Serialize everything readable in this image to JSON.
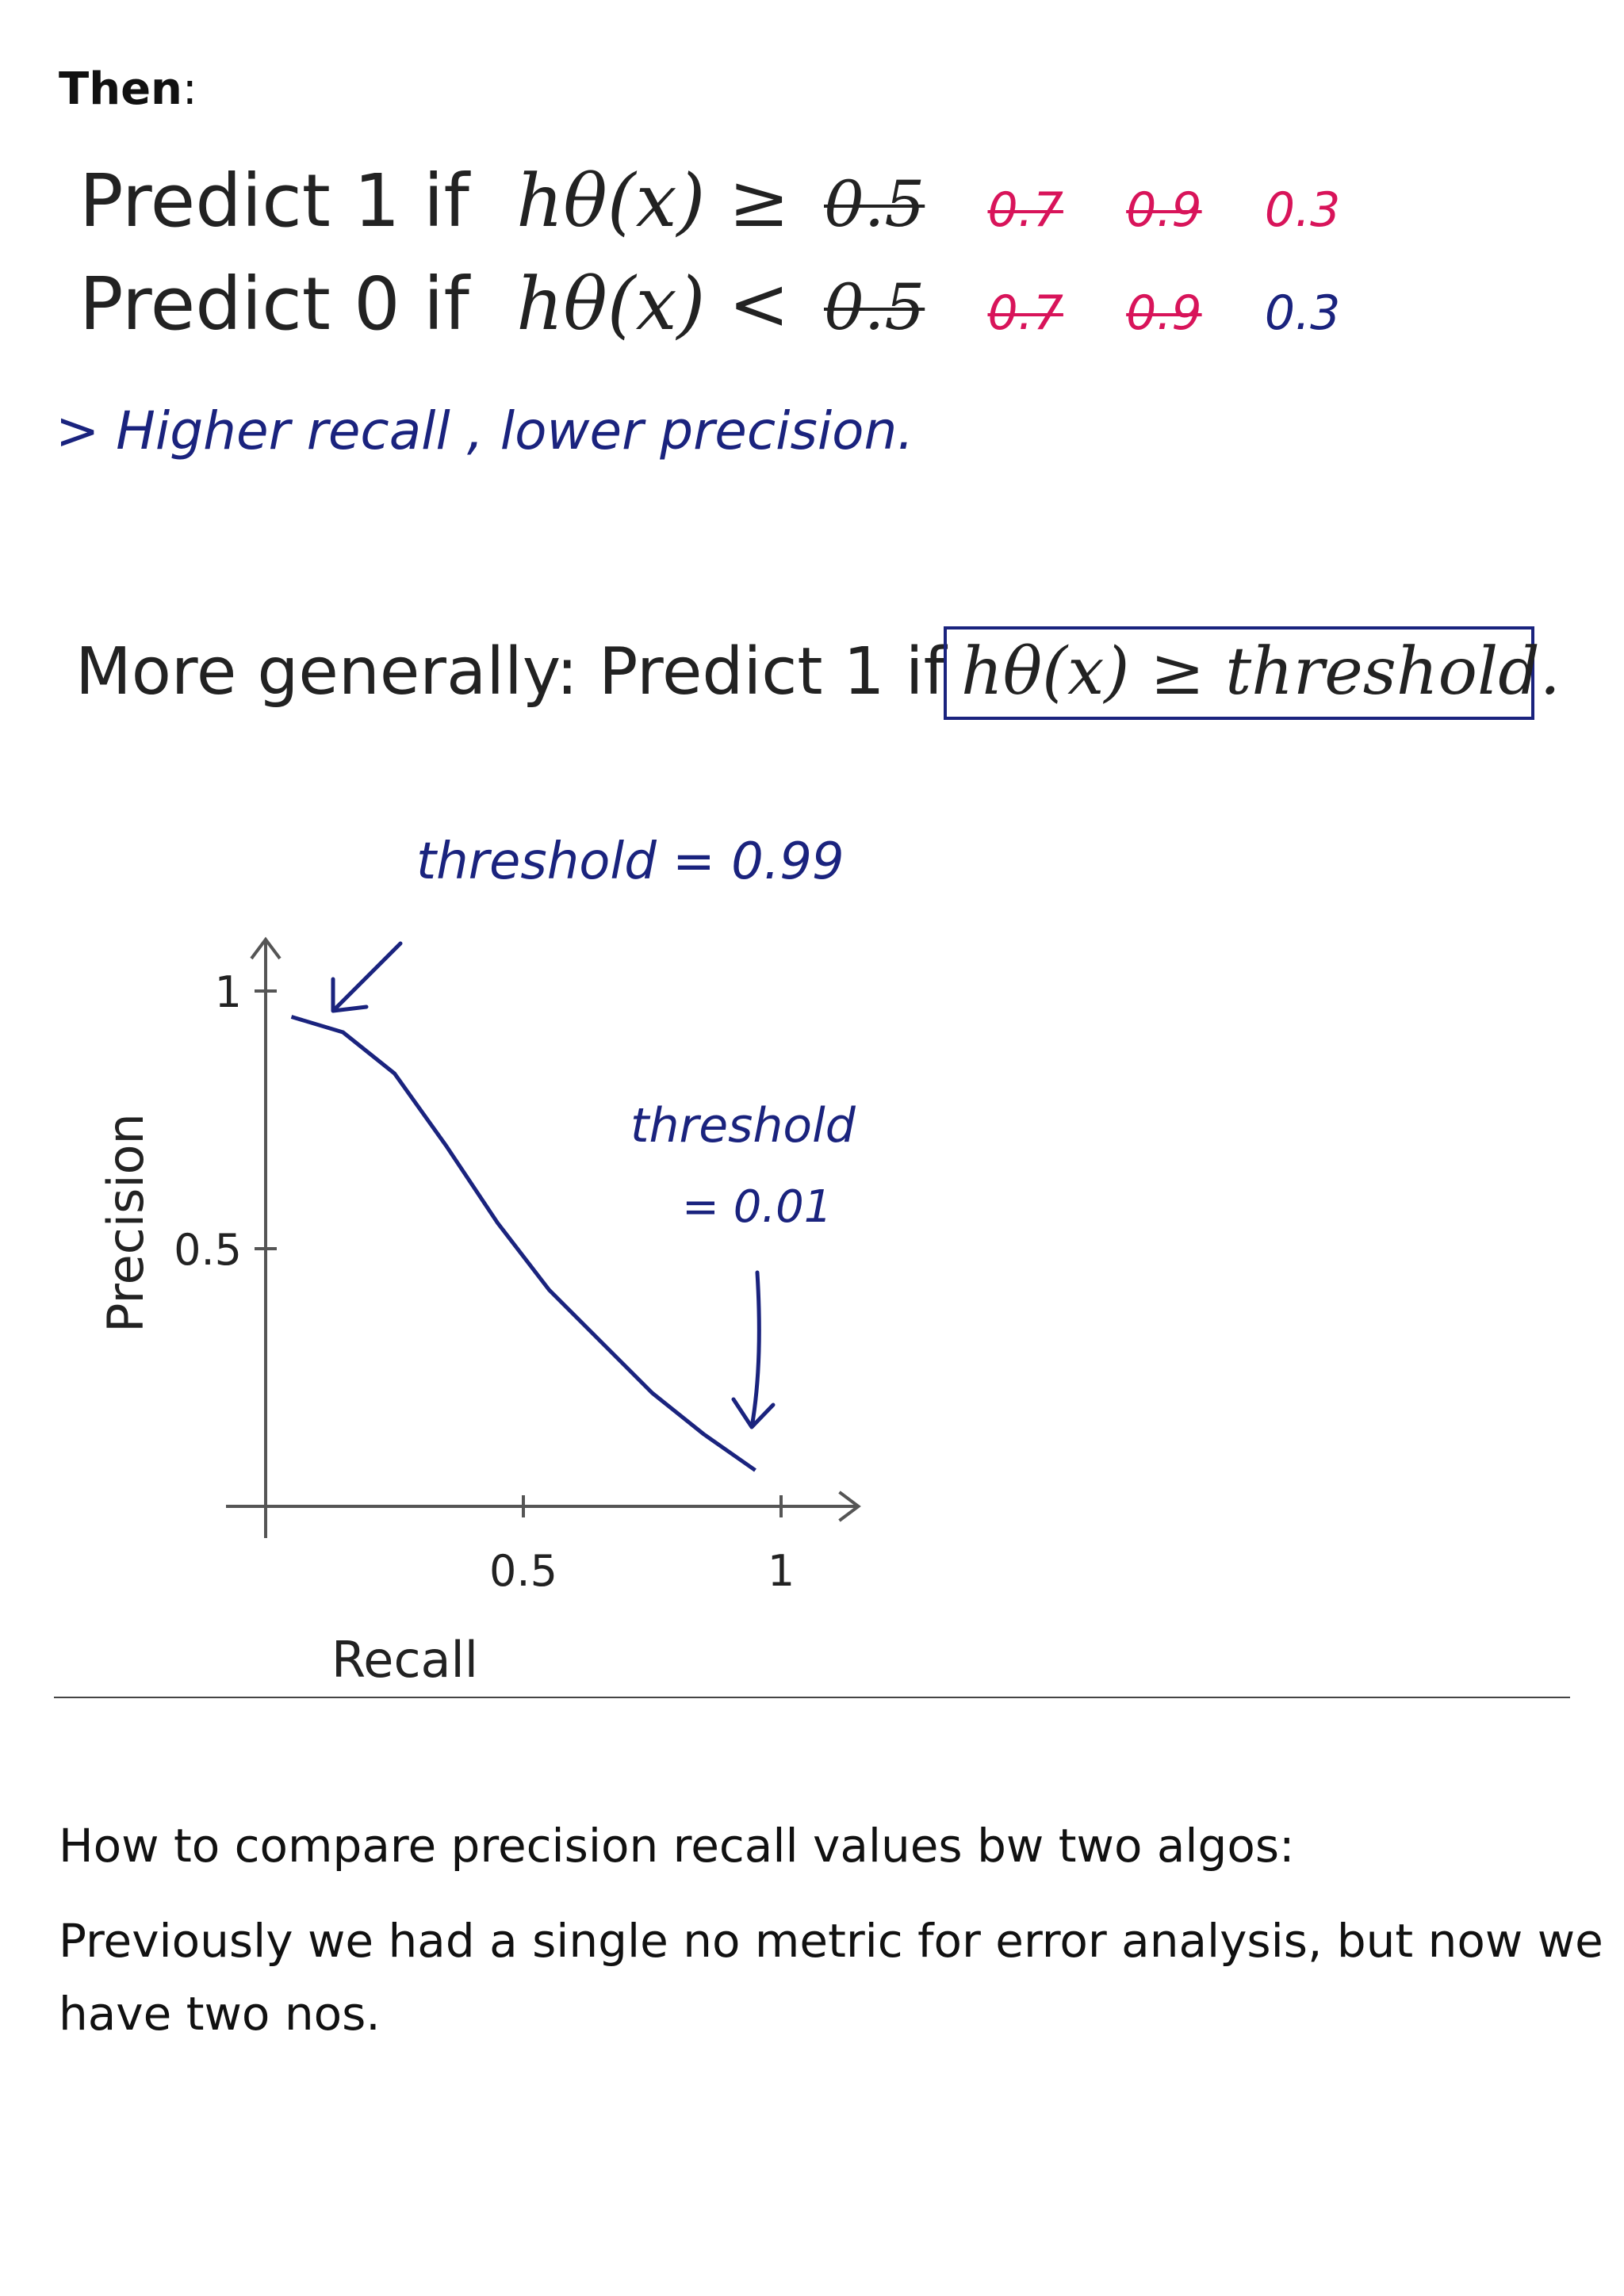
{
  "heading": {
    "label": "Then",
    "colon": ":"
  },
  "predict1": {
    "text": "Predict 1 if",
    "expr": "hθ(x) ≥",
    "orig": "0.5",
    "alts": [
      "0.7",
      "0.9",
      "0.3"
    ]
  },
  "predict0": {
    "text": "Predict 0 if",
    "expr": "hθ(x) <",
    "orig": "0.5",
    "alts": [
      "0.7",
      "0.9",
      "0.3"
    ]
  },
  "note": "> Higher recall , lower precision.",
  "general": {
    "prefix": "More generally: Predict 1 if",
    "boxed": "hθ(x) ≥ threshold."
  },
  "chart": {
    "annot_high_line1": "threshold = 0.99",
    "annot_low_line1": "threshold",
    "annot_low_line2": "= 0.01",
    "ylabel": "Precision",
    "xlabel": "Recall",
    "yticks": [
      "1",
      "0.5"
    ],
    "xticks": [
      "0.5",
      "1"
    ],
    "curve_color": "#1a237e"
  },
  "chart_data": {
    "type": "line",
    "title": "",
    "xlabel": "Recall",
    "ylabel": "Precision",
    "xlim": [
      0,
      1.1
    ],
    "ylim": [
      0,
      1.1
    ],
    "x_ticks": [
      0.5,
      1
    ],
    "y_ticks": [
      0.5,
      1
    ],
    "series": [
      {
        "x": [
          0.05,
          0.15,
          0.25,
          0.35,
          0.45,
          0.55,
          0.65,
          0.75,
          0.85,
          0.95
        ],
        "values": [
          0.95,
          0.92,
          0.84,
          0.7,
          0.55,
          0.42,
          0.32,
          0.22,
          0.14,
          0.07
        ]
      }
    ],
    "annotations": [
      "threshold = 0.99",
      "threshold = 0.01"
    ]
  },
  "body": {
    "line1": "How to compare precision recall values bw two algos:",
    "line2": "Previously we had a single no metric for error analysis, but now we",
    "line3": "have two nos."
  }
}
